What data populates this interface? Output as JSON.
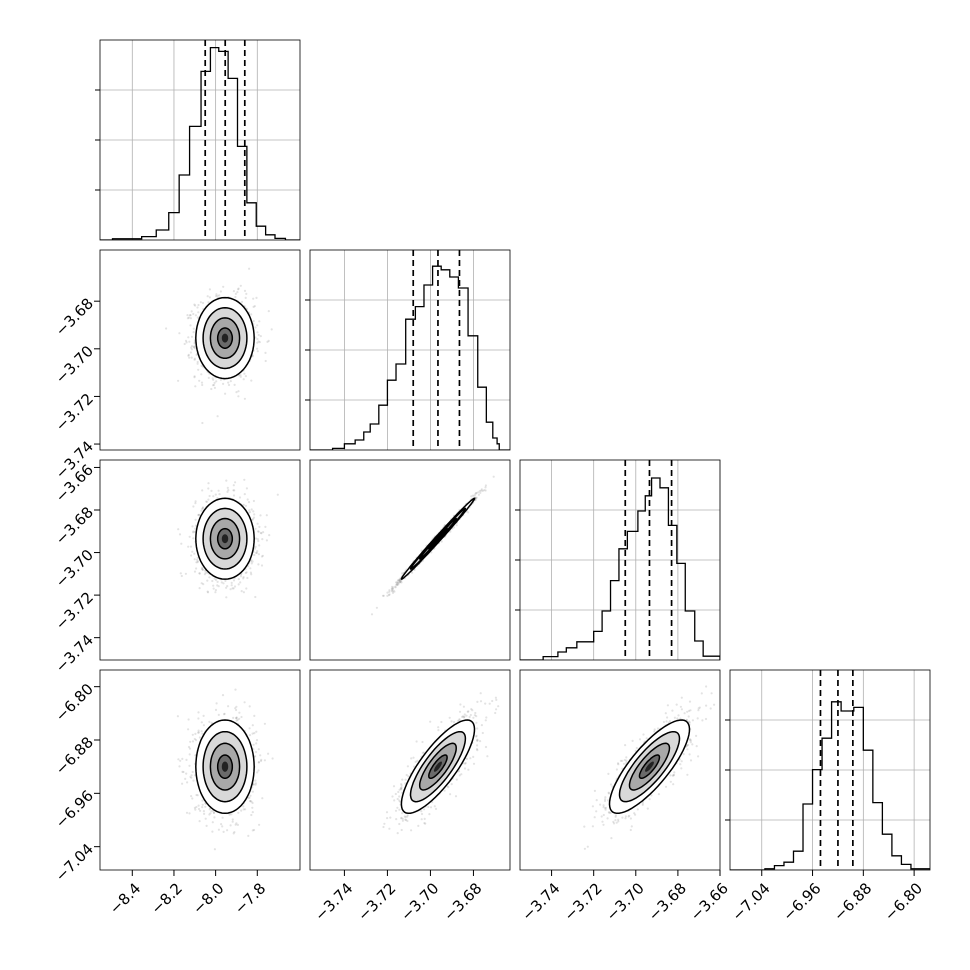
{
  "chart_data": {
    "type": "corner",
    "grid": true,
    "colors": {
      "line": "#000000",
      "grid": "#b0b0b0",
      "scatter": "#7f7f7f",
      "frame": "#000000"
    },
    "parameters": [
      {
        "ticks": [
          -8.4,
          -8.2,
          -8.0,
          -7.8
        ],
        "tick_labels": [
          "−8.4",
          "−8.2",
          "−8.0",
          "−7.8"
        ],
        "quantiles": [
          -8.05,
          -7.954,
          -7.86
        ]
      },
      {
        "ticks": [
          -3.74,
          -3.72,
          -3.7,
          -3.68
        ],
        "tick_labels": [
          "−3.74",
          "−3.72",
          "−3.70",
          "−3.68"
        ],
        "quantiles": [
          -3.708,
          -3.6965,
          -3.6865
        ]
      },
      {
        "ticks": [
          -3.74,
          -3.72,
          -3.7,
          -3.68,
          -3.66
        ],
        "tick_labels": [
          "−3.74",
          "−3.72",
          "−3.70",
          "−3.68",
          "−3.66"
        ],
        "quantiles": [
          -3.705,
          -3.6935,
          -3.683
        ]
      },
      {
        "ticks": [
          -7.04,
          -6.96,
          -6.88,
          -6.8
        ],
        "tick_labels": [
          "−7.04",
          "−6.96",
          "−6.88",
          "−6.80"
        ],
        "quantiles": [
          -6.9475,
          -6.92,
          -6.8965
        ]
      }
    ],
    "histograms": [
      {
        "param": 0,
        "edges": [
          -8.555,
          -8.495,
          -8.355,
          -8.285,
          -8.225,
          -8.175,
          -8.125,
          -8.07,
          -8.025,
          -7.985,
          -7.94,
          -7.895,
          -7.85,
          -7.805,
          -7.76,
          -7.715,
          -7.665,
          -7.625,
          -7.595
        ],
        "counts": [
          0,
          0.006,
          0.017,
          0.05,
          0.137,
          0.325,
          0.568,
          0.843,
          0.962,
          0.943,
          0.808,
          0.468,
          0.186,
          0.069,
          0.026,
          0.008,
          0,
          0
        ]
      },
      {
        "param": 1,
        "edges": [
          -3.756,
          -3.7455,
          -3.74,
          -3.735,
          -3.731,
          -3.728,
          -3.724,
          -3.72,
          -3.716,
          -3.7115,
          -3.707,
          -3.703,
          -3.699,
          -3.695,
          -3.691,
          -3.687,
          -3.6825,
          -3.678,
          -3.674,
          -3.671,
          -3.669,
          -3.668,
          -3.663
        ],
        "counts": [
          0,
          0.008,
          0.031,
          0.05,
          0.09,
          0.13,
          0.224,
          0.349,
          0.43,
          0.654,
          0.717,
          0.825,
          0.919,
          0.901,
          0.865,
          0.81,
          0.571,
          0.314,
          0.139,
          0.06,
          0.031,
          0,
          0
        ]
      },
      {
        "param": 2,
        "edges": [
          -3.755,
          -3.744,
          -3.737,
          -3.733,
          -3.728,
          -3.72,
          -3.716,
          -3.712,
          -3.708,
          -3.704,
          -3.699,
          -3.6955,
          -3.6925,
          -3.6885,
          -3.6845,
          -3.6805,
          -3.6765,
          -3.672,
          -3.668,
          -3.664,
          -3.66
        ],
        "counts": [
          0,
          0.017,
          0.04,
          0.061,
          0.091,
          0.143,
          0.245,
          0.397,
          0.556,
          0.643,
          0.745,
          0.821,
          0.91,
          0.861,
          0.673,
          0.483,
          0.245,
          0.095,
          0.019,
          0.019,
          0
        ]
      },
      {
        "param": 3,
        "edges": [
          -7.09,
          -7.035,
          -7.02,
          -7.005,
          -6.99,
          -6.975,
          -6.96,
          -6.945,
          -6.93,
          -6.915,
          -6.895,
          -6.88,
          -6.865,
          -6.85,
          -6.835,
          -6.82,
          -6.805,
          -6.775
        ],
        "counts": [
          0,
          0.006,
          0.022,
          0.039,
          0.094,
          0.33,
          0.502,
          0.659,
          0.841,
          0.795,
          0.813,
          0.599,
          0.337,
          0.179,
          0.071,
          0.028,
          0.006
        ]
      }
    ],
    "scatter_2d": [
      {
        "x_param": 0,
        "y_param": 1,
        "mean": [
          -7.955,
          -3.6955
        ],
        "std": [
          0.07,
          0.0085
        ],
        "corr": 0.0
      },
      {
        "x_param": 0,
        "y_param": 2,
        "mean": [
          -7.955,
          -3.6935
        ],
        "std": [
          0.07,
          0.0095
        ],
        "corr": 0.0
      },
      {
        "x_param": 1,
        "y_param": 2,
        "mean": [
          -3.6965,
          -3.6935
        ],
        "std": [
          0.0085,
          0.0095
        ],
        "corr": 0.995
      },
      {
        "x_param": 0,
        "y_param": 3,
        "mean": [
          -7.955,
          -6.92
        ],
        "std": [
          0.07,
          0.035
        ],
        "corr": 0.0
      },
      {
        "x_param": 1,
        "y_param": 3,
        "mean": [
          -3.6965,
          -6.92
        ],
        "std": [
          0.0085,
          0.035
        ],
        "corr": 0.8
      },
      {
        "x_param": 2,
        "y_param": 3,
        "mean": [
          -3.6935,
          -6.92
        ],
        "std": [
          0.0095,
          0.035
        ],
        "corr": 0.8
      }
    ]
  }
}
